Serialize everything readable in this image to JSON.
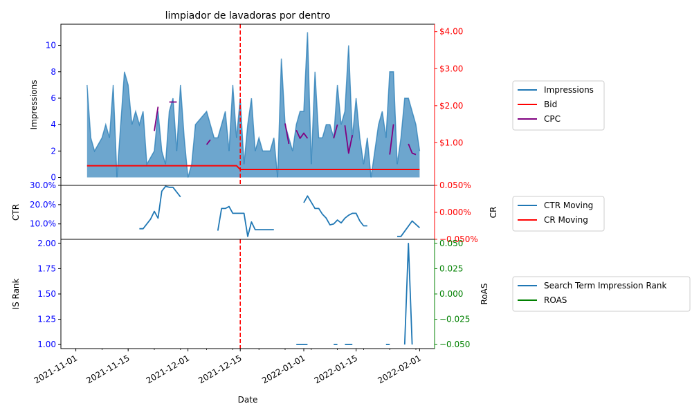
{
  "chart_data": {
    "type": "line",
    "title": "limpiador de lavadoras por dentro",
    "xlabel": "Date",
    "x_ticks": [
      "2021-11-01",
      "2021-11-15",
      "2021-12-01",
      "2021-12-15",
      "2022-01-01",
      "2022-01-15",
      "2022-02-01"
    ],
    "event_date": "2021-12-15",
    "colors": {
      "impressions": "#1f77b4",
      "bid": "#ff0000",
      "cpc": "#800080",
      "ctr": "#1f77b4",
      "cr": "#ff0000",
      "rank": "#1f77b4",
      "roas": "#008000",
      "event_line": "#ff0000",
      "left_axis": "#0000ff",
      "roas_axis": "#008000"
    },
    "panels": [
      {
        "name": "impressions",
        "ylabel": "Impressions",
        "ylim": [
          -0.6,
          11.6
        ],
        "y_ticks": [
          0,
          2,
          4,
          6,
          8,
          10
        ],
        "y_tick_labels": [
          "0",
          "2",
          "4",
          "6",
          "8",
          "10"
        ],
        "y2lim": [
          -0.15,
          4.2
        ],
        "y2_ticks": [
          1,
          2,
          3,
          4
        ],
        "y2_tick_labels": [
          "$1.00",
          "$2.00",
          "$3.00",
          "$4.00"
        ],
        "legend": [
          "Impressions",
          "Bid",
          "CPC"
        ],
        "series": [
          {
            "name": "Impressions",
            "kind": "area",
            "axis": "left",
            "points": [
              [
                "2021-11-04",
                7
              ],
              [
                "2021-11-05",
                3
              ],
              [
                "2021-11-06",
                2
              ],
              [
                "2021-11-08",
                3
              ],
              [
                "2021-11-09",
                4
              ],
              [
                "2021-11-10",
                3
              ],
              [
                "2021-11-11",
                7
              ],
              [
                "2021-11-12",
                0
              ],
              [
                "2021-11-13",
                4
              ],
              [
                "2021-11-14",
                8
              ],
              [
                "2021-11-15",
                7
              ],
              [
                "2021-11-16",
                4
              ],
              [
                "2021-11-17",
                5
              ],
              [
                "2021-11-18",
                4
              ],
              [
                "2021-11-19",
                5
              ],
              [
                "2021-11-20",
                1
              ],
              [
                "2021-11-22",
                2
              ],
              [
                "2021-11-23",
                5
              ],
              [
                "2021-11-24",
                2
              ],
              [
                "2021-11-25",
                1
              ],
              [
                "2021-11-26",
                5
              ],
              [
                "2021-11-27",
                6
              ],
              [
                "2021-11-28",
                2
              ],
              [
                "2021-11-29",
                7
              ],
              [
                "2021-11-30",
                3
              ],
              [
                "2021-12-01",
                0
              ],
              [
                "2021-12-02",
                1
              ],
              [
                "2021-12-03",
                4
              ],
              [
                "2021-12-06",
                5
              ],
              [
                "2021-12-08",
                3
              ],
              [
                "2021-12-09",
                3
              ],
              [
                "2021-12-11",
                5
              ],
              [
                "2021-12-12",
                2
              ],
              [
                "2021-12-13",
                7
              ],
              [
                "2021-12-14",
                3
              ],
              [
                "2021-12-15",
                6
              ],
              [
                "2021-12-16",
                1
              ],
              [
                "2021-12-17",
                4
              ],
              [
                "2021-12-18",
                6
              ],
              [
                "2021-12-19",
                2
              ],
              [
                "2021-12-20",
                3
              ],
              [
                "2021-12-21",
                2
              ],
              [
                "2021-12-23",
                2
              ],
              [
                "2021-12-24",
                3
              ],
              [
                "2021-12-25",
                0
              ],
              [
                "2021-12-26",
                9
              ],
              [
                "2021-12-27",
                4
              ],
              [
                "2021-12-28",
                3
              ],
              [
                "2021-12-29",
                2
              ],
              [
                "2021-12-30",
                4
              ],
              [
                "2021-12-31",
                5
              ],
              [
                "2022-01-01",
                5
              ],
              [
                "2022-01-02",
                11
              ],
              [
                "2022-01-03",
                1
              ],
              [
                "2022-01-04",
                8
              ],
              [
                "2022-01-05",
                3
              ],
              [
                "2022-01-06",
                3
              ],
              [
                "2022-01-07",
                4
              ],
              [
                "2022-01-08",
                4
              ],
              [
                "2022-01-09",
                3
              ],
              [
                "2022-01-10",
                7
              ],
              [
                "2022-01-11",
                4
              ],
              [
                "2022-01-12",
                5
              ],
              [
                "2022-01-13",
                10
              ],
              [
                "2022-01-14",
                3
              ],
              [
                "2022-01-15",
                6
              ],
              [
                "2022-01-16",
                3
              ],
              [
                "2022-01-17",
                1
              ],
              [
                "2022-01-18",
                3
              ],
              [
                "2022-01-19",
                0
              ],
              [
                "2022-01-20",
                2
              ],
              [
                "2022-01-21",
                4
              ],
              [
                "2022-01-22",
                5
              ],
              [
                "2022-01-23",
                3
              ],
              [
                "2022-01-24",
                8
              ],
              [
                "2022-01-25",
                8
              ],
              [
                "2022-01-26",
                1
              ],
              [
                "2022-01-27",
                3
              ],
              [
                "2022-01-28",
                6
              ],
              [
                "2022-01-29",
                6
              ],
              [
                "2022-01-31",
                4
              ],
              [
                "2022-02-01",
                2
              ]
            ]
          },
          {
            "name": "Bid",
            "kind": "line",
            "axis": "right",
            "points": [
              [
                "2021-11-04",
                0.38
              ],
              [
                "2021-12-14",
                0.38
              ],
              [
                "2021-12-15",
                0.28
              ],
              [
                "2022-02-01",
                0.28
              ]
            ]
          },
          {
            "name": "CPC",
            "kind": "segments",
            "axis": "right",
            "segments": [
              [
                [
                  "2021-11-22",
                  1.32
                ],
                [
                  "2021-11-23",
                  1.97
                ]
              ],
              [
                [
                  "2021-11-26",
                  2.1
                ],
                [
                  "2021-11-28",
                  2.1
                ]
              ],
              [
                [
                  "2021-12-06",
                  0.95
                ],
                [
                  "2021-12-07",
                  1.08
                ]
              ],
              [
                [
                  "2021-12-27",
                  1.52
                ],
                [
                  "2021-12-28",
                  0.97
                ]
              ],
              [
                [
                  "2021-12-30",
                  1.34
                ],
                [
                  "2021-12-31",
                  1.12
                ],
                [
                  "2022-01-01",
                  1.26
                ],
                [
                  "2022-01-02",
                  1.12
                ]
              ],
              [
                [
                  "2022-01-09",
                  1.12
                ],
                [
                  "2022-01-10",
                  1.49
                ]
              ],
              [
                [
                  "2022-01-12",
                  1.47
                ],
                [
                  "2022-01-13",
                  0.72
                ],
                [
                  "2022-01-14",
                  1.21
                ]
              ],
              [
                [
                  "2022-01-24",
                  0.68
                ],
                [
                  "2022-01-25",
                  1.5
                ]
              ],
              [
                [
                  "2022-01-29",
                  0.97
                ],
                [
                  "2022-01-30",
                  0.72
                ],
                [
                  "2022-01-31",
                  0.68
                ]
              ]
            ]
          }
        ]
      },
      {
        "name": "ctr",
        "ylabel": "CTR",
        "ylim": [
          0.02,
          0.3
        ],
        "y_ticks": [
          0.1,
          0.2,
          0.3
        ],
        "y_tick_labels": [
          "10.0%",
          "20.0%",
          "30.0%"
        ],
        "y2label": "CR",
        "y2lim": [
          -0.05,
          0.05
        ],
        "y2_ticks": [
          -0.05,
          0.0,
          0.05
        ],
        "y2_tick_labels": [
          "−0.050%",
          "0.000%",
          "0.050%"
        ],
        "legend": [
          "CTR Moving",
          "CR Moving"
        ],
        "series": [
          {
            "name": "CTR Moving",
            "kind": "segments",
            "axis": "left",
            "segments": [
              [
                [
                  "2021-11-18",
                  0.075
                ],
                [
                  "2021-11-19",
                  0.075
                ],
                [
                  "2021-11-21",
                  0.125
                ],
                [
                  "2021-11-22",
                  0.165
                ],
                [
                  "2021-11-23",
                  0.13
                ],
                [
                  "2021-11-24",
                  0.27
                ],
                [
                  "2021-11-25",
                  0.295
                ],
                [
                  "2021-11-26",
                  0.29
                ],
                [
                  "2021-11-27",
                  0.29
                ],
                [
                  "2021-11-29",
                  0.24
                ]
              ],
              [
                [
                  "2021-12-09",
                  0.065
                ],
                [
                  "2021-12-10",
                  0.18
                ],
                [
                  "2021-12-11",
                  0.18
                ],
                [
                  "2021-12-12",
                  0.19
                ],
                [
                  "2021-12-13",
                  0.155
                ],
                [
                  "2021-12-15",
                  0.155
                ],
                [
                  "2021-12-16",
                  0.155
                ],
                [
                  "2021-12-17",
                  0.035
                ],
                [
                  "2021-12-18",
                  0.11
                ],
                [
                  "2021-12-19",
                  0.07
                ],
                [
                  "2021-12-24",
                  0.07
                ]
              ],
              [
                [
                  "2022-01-01",
                  0.21
                ],
                [
                  "2022-01-02",
                  0.245
                ],
                [
                  "2022-01-04",
                  0.18
                ],
                [
                  "2022-01-05",
                  0.18
                ],
                [
                  "2022-01-06",
                  0.15
                ],
                [
                  "2022-01-07",
                  0.13
                ],
                [
                  "2022-01-08",
                  0.095
                ],
                [
                  "2022-01-09",
                  0.1
                ],
                [
                  "2022-01-10",
                  0.12
                ],
                [
                  "2022-01-11",
                  0.105
                ],
                [
                  "2022-01-12",
                  0.13
                ],
                [
                  "2022-01-13",
                  0.145
                ],
                [
                  "2022-01-14",
                  0.155
                ],
                [
                  "2022-01-15",
                  0.155
                ],
                [
                  "2022-01-16",
                  0.115
                ],
                [
                  "2022-01-17",
                  0.09
                ],
                [
                  "2022-01-18",
                  0.09
                ]
              ],
              [
                [
                  "2022-01-26",
                  0.035
                ],
                [
                  "2022-01-27",
                  0.035
                ],
                [
                  "2022-01-30",
                  0.115
                ],
                [
                  "2022-02-01",
                  0.08
                ]
              ]
            ]
          },
          {
            "name": "CR Moving",
            "kind": "segments",
            "axis": "right",
            "segments": []
          }
        ]
      },
      {
        "name": "rank",
        "ylabel": "IS Rank",
        "ylim": [
          0.96,
          2.04
        ],
        "y_ticks": [
          1.0,
          1.25,
          1.5,
          1.75,
          2.0
        ],
        "y_tick_labels": [
          "1.00",
          "1.25",
          "1.50",
          "1.75",
          "2.00"
        ],
        "y2label": "RoAS",
        "y2lim": [
          -0.054,
          0.054
        ],
        "y2_ticks": [
          -0.05,
          -0.025,
          0.0,
          0.025,
          0.05
        ],
        "y2_tick_labels": [
          "−0.050",
          "−0.025",
          "0.000",
          "0.025",
          "0.050"
        ],
        "legend": [
          "Search Term Impression Rank",
          "ROAS"
        ],
        "series": [
          {
            "name": "Search Term Impression Rank",
            "kind": "segments",
            "axis": "left",
            "segments": [
              [
                [
                  "2021-12-30",
                  1.0
                ],
                [
                  "2022-01-02",
                  1.0
                ]
              ],
              [
                [
                  "2022-01-09",
                  1.0
                ],
                [
                  "2022-01-10",
                  1.0
                ]
              ],
              [
                [
                  "2022-01-12",
                  1.0
                ],
                [
                  "2022-01-14",
                  1.0
                ]
              ],
              [
                [
                  "2022-01-23",
                  1.0
                ],
                [
                  "2022-01-24",
                  1.0
                ]
              ],
              [
                [
                  "2022-01-28",
                  1.0
                ],
                [
                  "2022-01-29",
                  2.0
                ],
                [
                  "2022-01-30",
                  1.0
                ]
              ]
            ]
          },
          {
            "name": "ROAS",
            "kind": "segments",
            "axis": "right",
            "segments": []
          }
        ]
      }
    ]
  }
}
